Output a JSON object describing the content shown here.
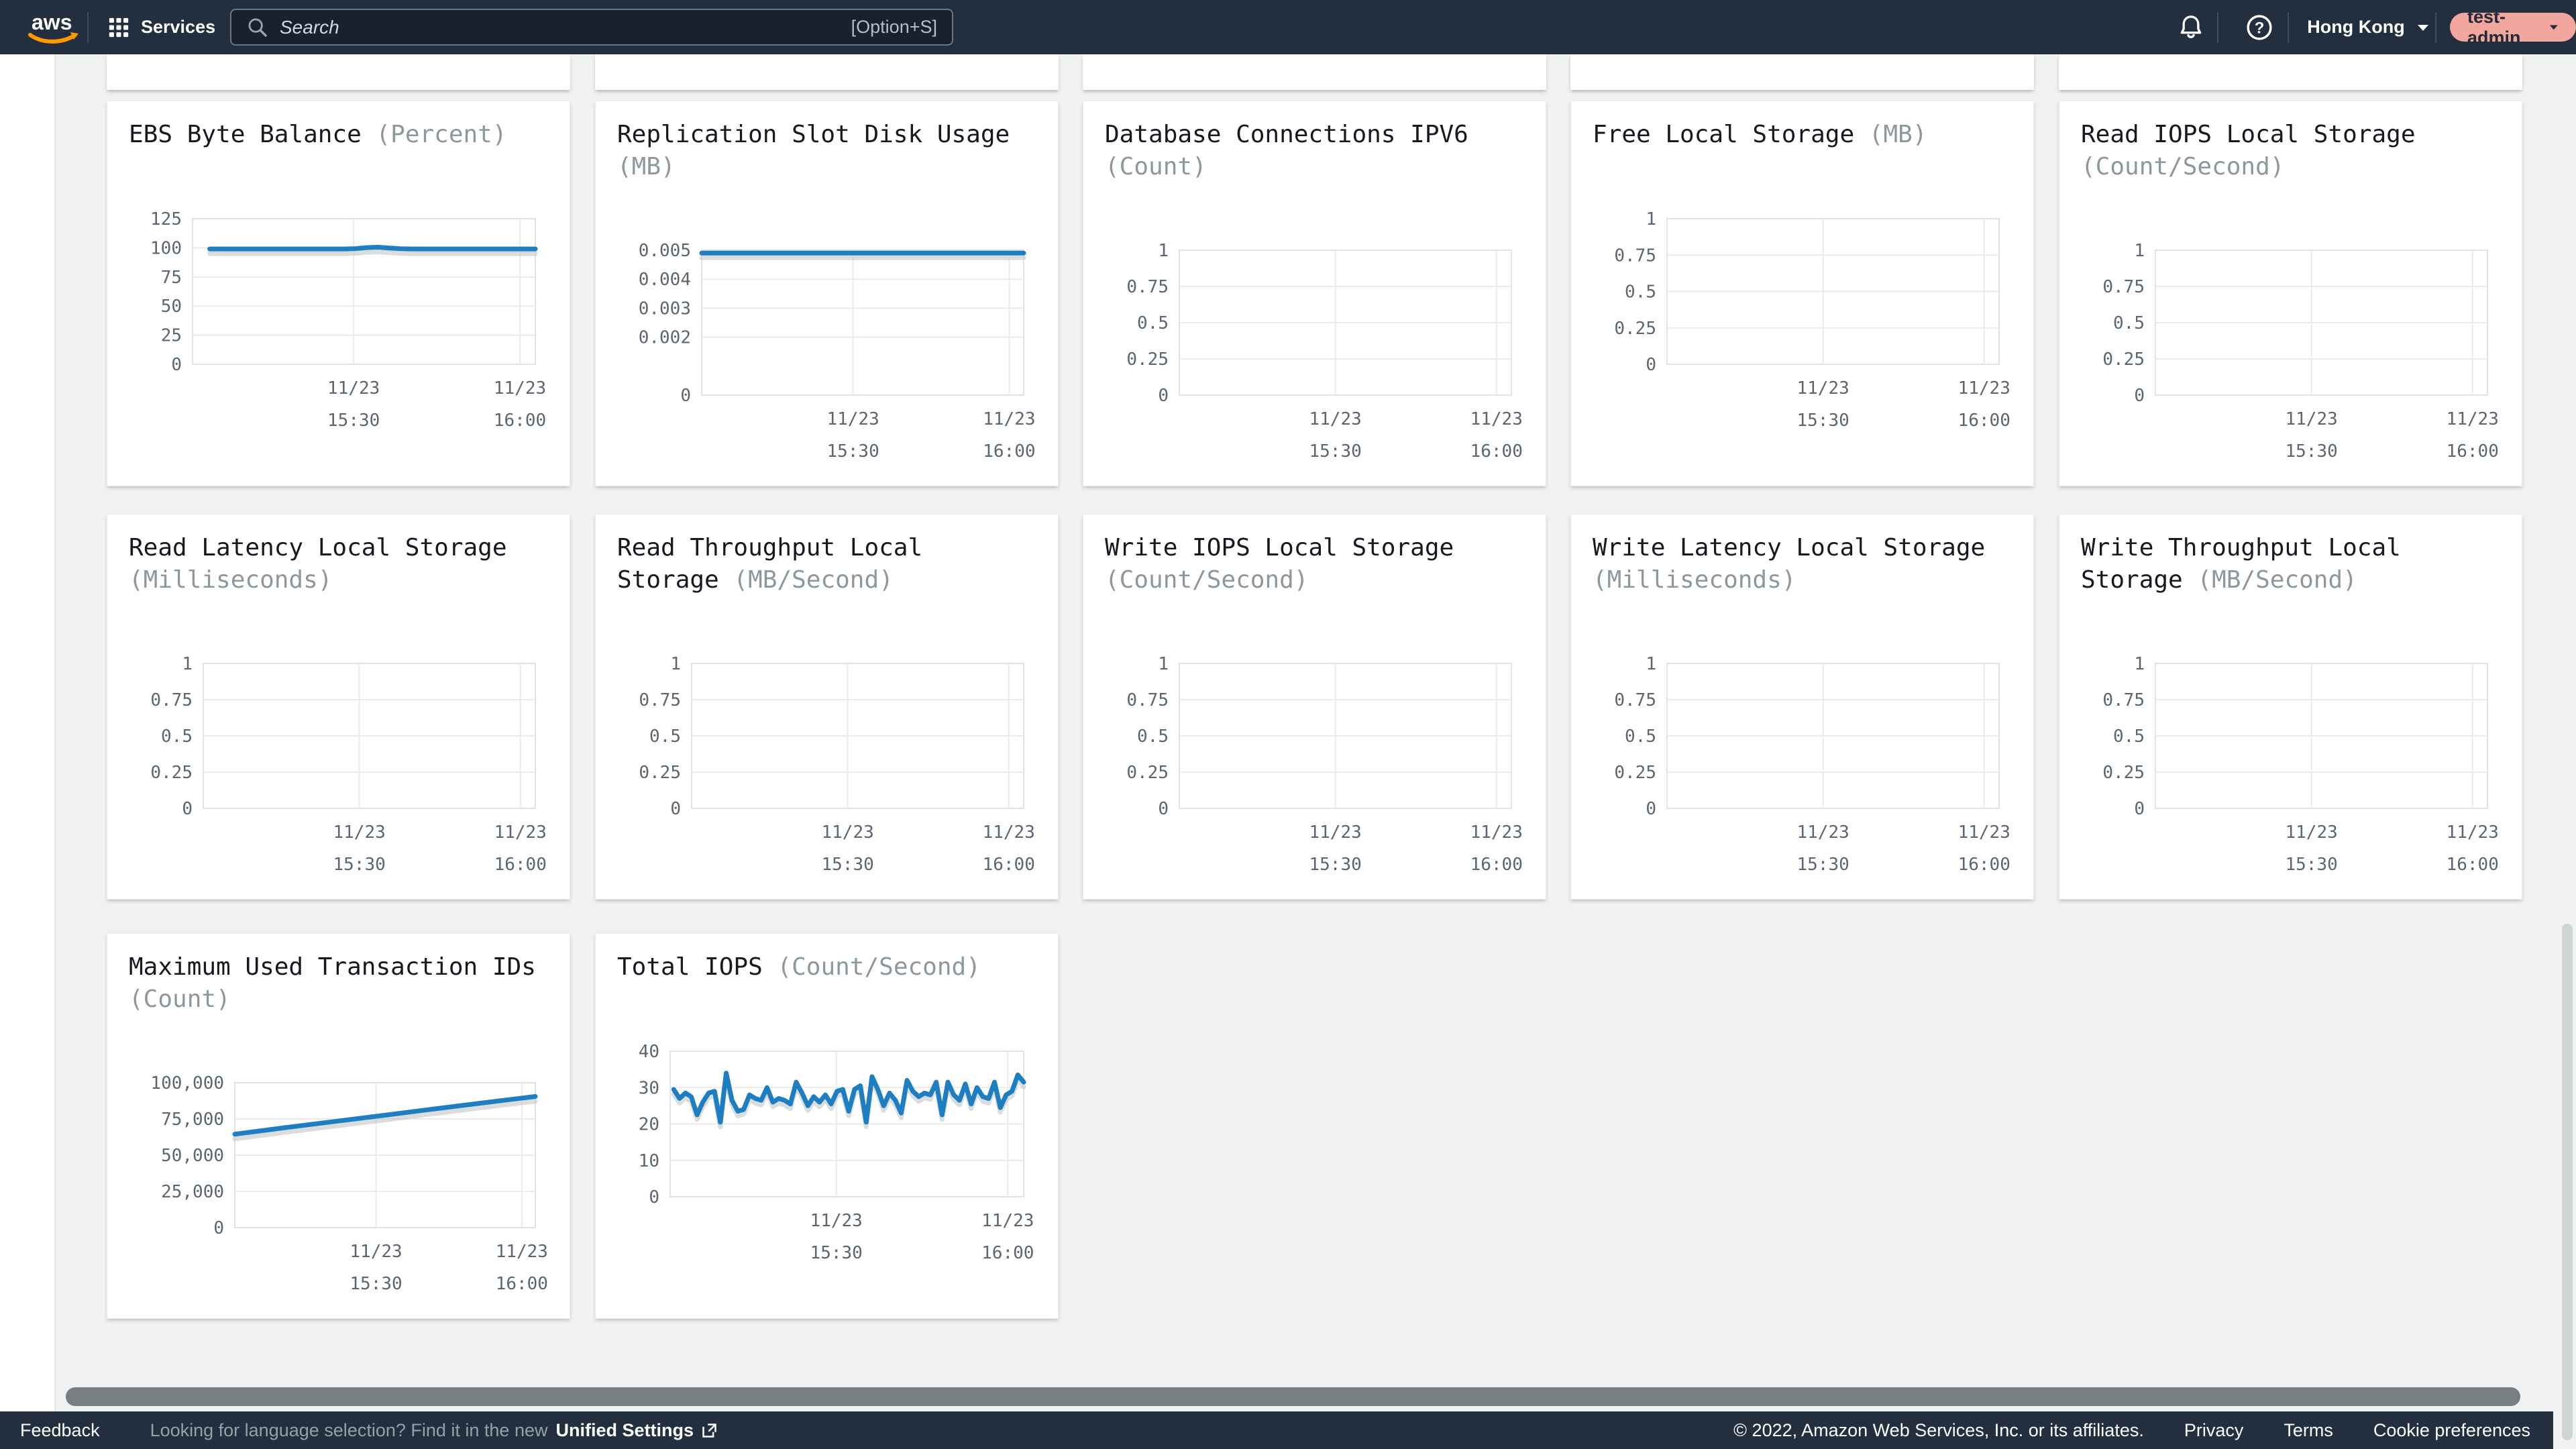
{
  "header": {
    "logo": "aws",
    "services": "Services",
    "search": {
      "placeholder": "Search",
      "shortcut": "[Option+S]"
    },
    "region": "Hong Kong",
    "user": "test-admin"
  },
  "colors": {
    "header_bg": "#232f3e",
    "accent_line": "#1e7ec2",
    "user_pill": "#f1a69e",
    "page_bg": "#f0f1f1",
    "logo_smile": "#ff9900"
  },
  "x_axis": {
    "labels": [
      [
        "11/23",
        "15:30"
      ],
      [
        "11/23",
        "16:00"
      ]
    ],
    "positions": [
      0.47,
      0.955
    ]
  },
  "chart_data": [
    {
      "type": "line",
      "title": "EBS Byte Balance",
      "unit": "(Percent)",
      "ylim": [
        0,
        125
      ],
      "yticks": {
        "labels": [
          "125",
          "100",
          "75",
          "50",
          "25",
          "0"
        ],
        "fracs": [
          1,
          0.8,
          0.6,
          0.4,
          0.2,
          0
        ]
      },
      "x_ticks": [
        "11/23 15:30",
        "11/23 16:00"
      ],
      "grid": true,
      "series": [
        {
          "name": "EBS Byte Balance",
          "x_start": 0.05,
          "values": [
            99,
            99,
            99,
            99,
            99,
            99,
            99,
            99,
            99,
            99,
            99,
            99,
            99,
            99.3,
            100.2,
            100.5,
            99.8,
            99.2,
            99,
            99,
            99,
            99,
            99,
            99,
            99,
            99,
            99,
            99,
            99,
            99
          ]
        }
      ]
    },
    {
      "type": "line",
      "title": "Replication Slot Disk Usage",
      "unit": "(MB)",
      "ylim": [
        0,
        0.005
      ],
      "yticks": {
        "labels": [
          "0.005",
          "0.004",
          "0.003",
          "0.002",
          "0"
        ],
        "fracs": [
          1,
          0.8,
          0.6,
          0.4,
          0
        ]
      },
      "x_ticks": [
        "11/23 15:30",
        "11/23 16:00"
      ],
      "grid": true,
      "series": [
        {
          "name": "Replication Slot Disk Usage",
          "x_start": 0,
          "values": [
            0.0049,
            0.0049
          ]
        }
      ]
    },
    {
      "type": "line",
      "title": "Database Connections IPV6",
      "unit": "(Count)",
      "ylim": [
        0,
        1
      ],
      "yticks": {
        "labels": [
          "1",
          "0.75",
          "0.5",
          "0.25",
          "0"
        ],
        "fracs": [
          1,
          0.75,
          0.5,
          0.25,
          0
        ]
      },
      "x_ticks": [
        "11/23 15:30",
        "11/23 16:00"
      ],
      "grid": true,
      "series": []
    },
    {
      "type": "line",
      "title": "Free Local Storage",
      "unit": "(MB)",
      "ylim": [
        0,
        1
      ],
      "yticks": {
        "labels": [
          "1",
          "0.75",
          "0.5",
          "0.25",
          "0"
        ],
        "fracs": [
          1,
          0.75,
          0.5,
          0.25,
          0
        ]
      },
      "x_ticks": [
        "11/23 15:30",
        "11/23 16:00"
      ],
      "grid": true,
      "series": []
    },
    {
      "type": "line",
      "title": "Read IOPS Local Storage",
      "unit": "(Count/Second)",
      "ylim": [
        0,
        1
      ],
      "yticks": {
        "labels": [
          "1",
          "0.75",
          "0.5",
          "0.25",
          "0"
        ],
        "fracs": [
          1,
          0.75,
          0.5,
          0.25,
          0
        ]
      },
      "x_ticks": [
        "11/23 15:30",
        "11/23 16:00"
      ],
      "grid": true,
      "series": []
    },
    {
      "type": "line",
      "title": "Read Latency Local Storage",
      "unit": "(Milliseconds)",
      "ylim": [
        0,
        1
      ],
      "yticks": {
        "labels": [
          "1",
          "0.75",
          "0.5",
          "0.25",
          "0"
        ],
        "fracs": [
          1,
          0.75,
          0.5,
          0.25,
          0
        ]
      },
      "x_ticks": [
        "11/23 15:30",
        "11/23 16:00"
      ],
      "grid": true,
      "series": []
    },
    {
      "type": "line",
      "title": "Read Throughput Local Storage",
      "unit": "(MB/Second)",
      "ylim": [
        0,
        1
      ],
      "yticks": {
        "labels": [
          "1",
          "0.75",
          "0.5",
          "0.25",
          "0"
        ],
        "fracs": [
          1,
          0.75,
          0.5,
          0.25,
          0
        ]
      },
      "x_ticks": [
        "11/23 15:30",
        "11/23 16:00"
      ],
      "grid": true,
      "series": []
    },
    {
      "type": "line",
      "title": "Write IOPS Local Storage",
      "unit": "(Count/Second)",
      "ylim": [
        0,
        1
      ],
      "yticks": {
        "labels": [
          "1",
          "0.75",
          "0.5",
          "0.25",
          "0"
        ],
        "fracs": [
          1,
          0.75,
          0.5,
          0.25,
          0
        ]
      },
      "x_ticks": [
        "11/23 15:30",
        "11/23 16:00"
      ],
      "grid": true,
      "series": []
    },
    {
      "type": "line",
      "title": "Write Latency Local Storage",
      "unit": "(Milliseconds)",
      "ylim": [
        0,
        1
      ],
      "yticks": {
        "labels": [
          "1",
          "0.75",
          "0.5",
          "0.25",
          "0"
        ],
        "fracs": [
          1,
          0.75,
          0.5,
          0.25,
          0
        ]
      },
      "x_ticks": [
        "11/23 15:30",
        "11/23 16:00"
      ],
      "grid": true,
      "series": []
    },
    {
      "type": "line",
      "title": "Write Throughput Local Storage",
      "unit": "(MB/Second)",
      "ylim": [
        0,
        1
      ],
      "yticks": {
        "labels": [
          "1",
          "0.75",
          "0.5",
          "0.25",
          "0"
        ],
        "fracs": [
          1,
          0.75,
          0.5,
          0.25,
          0
        ]
      },
      "x_ticks": [
        "11/23 15:30",
        "11/23 16:00"
      ],
      "grid": true,
      "series": []
    },
    {
      "type": "line",
      "title": "Maximum Used Transaction IDs",
      "unit": "(Count)",
      "ylim": [
        0,
        100000
      ],
      "yticks": {
        "labels": [
          "100,000",
          "75,000",
          "50,000",
          "25,000",
          "0"
        ],
        "fracs": [
          1,
          0.75,
          0.5,
          0.25,
          0
        ]
      },
      "x_ticks": [
        "11/23 15:30",
        "11/23 16:00"
      ],
      "grid": true,
      "series": [
        {
          "name": "Maximum Used Transaction IDs",
          "x_start": 0,
          "values": [
            64500,
            69000,
            73300,
            77600,
            82000,
            86300,
            90500
          ]
        }
      ]
    },
    {
      "type": "line",
      "title": "Total IOPS",
      "unit": "(Count/Second)",
      "ylim": [
        0,
        40
      ],
      "yticks": {
        "labels": [
          "40",
          "30",
          "20",
          "10",
          "0"
        ],
        "fracs": [
          1,
          0.75,
          0.5,
          0.25,
          0
        ]
      },
      "x_ticks": [
        "11/23 15:30",
        "11/23 16:00"
      ],
      "grid": true,
      "series": [
        {
          "name": "Total IOPS",
          "x_start": 0.01,
          "values": [
            29.5,
            27,
            28.5,
            27.5,
            22.5,
            26,
            28.5,
            29,
            20.5,
            34,
            26.5,
            23.5,
            24,
            28,
            27,
            26.5,
            30,
            26,
            27,
            26.5,
            25.5,
            31.5,
            28.5,
            25,
            27.5,
            26,
            28,
            25.5,
            29,
            29.5,
            23.5,
            29.5,
            30.5,
            20.5,
            33,
            29.5,
            25,
            28.5,
            26.5,
            23,
            32,
            29,
            27.5,
            28.5,
            28,
            31.5,
            22.5,
            31.5,
            28,
            26.5,
            31,
            25.5,
            30,
            27.5,
            27,
            31.5,
            24.5,
            28,
            29,
            33.5,
            31.5
          ]
        }
      ]
    }
  ],
  "footer": {
    "feedback": "Feedback",
    "language_hint": "Looking for language selection? Find it in the new",
    "unified_settings": "Unified Settings",
    "copyright": "© 2022, Amazon Web Services, Inc. or its affiliates.",
    "links": [
      "Privacy",
      "Terms",
      "Cookie preferences"
    ]
  }
}
